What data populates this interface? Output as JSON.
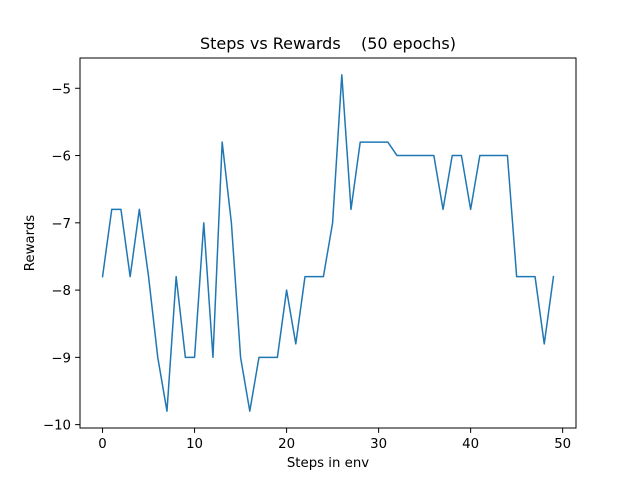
{
  "chart_data": {
    "type": "line",
    "title": "Steps vs Rewards    (50 epochs)",
    "xlabel": "Steps in env",
    "ylabel": "Rewards",
    "xlim": [
      -2.45,
      51.45
    ],
    "ylim": [
      -10.05,
      -4.55
    ],
    "x_ticks": [
      0,
      10,
      20,
      30,
      40,
      50
    ],
    "y_ticks": [
      -10,
      -9,
      -8,
      -7,
      -6,
      -5
    ],
    "x_tick_labels": [
      "0",
      "10",
      "20",
      "30",
      "40",
      "50"
    ],
    "y_tick_labels": [
      "−10",
      "−9",
      "−8",
      "−7",
      "−6",
      "−5"
    ],
    "grid": false,
    "series": [
      {
        "color": "#1f77b4",
        "x": [
          0,
          1,
          2,
          3,
          4,
          5,
          6,
          7,
          8,
          9,
          10,
          11,
          12,
          13,
          14,
          15,
          16,
          17,
          18,
          19,
          20,
          21,
          22,
          23,
          24,
          25,
          26,
          27,
          28,
          29,
          30,
          31,
          32,
          33,
          34,
          35,
          36,
          37,
          38,
          39,
          40,
          41,
          42,
          43,
          44,
          45,
          46,
          47,
          48,
          49
        ],
        "values": [
          -7.8,
          -6.8,
          -6.8,
          -7.8,
          -6.8,
          -7.8,
          -9.0,
          -9.8,
          -7.8,
          -9.0,
          -9.0,
          -7.0,
          -9.0,
          -5.8,
          -7.0,
          -9.0,
          -9.8,
          -9.0,
          -9.0,
          -9.0,
          -8.0,
          -8.8,
          -7.8,
          -7.8,
          -7.8,
          -7.0,
          -4.8,
          -6.8,
          -5.8,
          -5.8,
          -5.8,
          -5.8,
          -6.0,
          -6.0,
          -6.0,
          -6.0,
          -6.0,
          -6.8,
          -6.0,
          -6.0,
          -6.8,
          -6.0,
          -6.0,
          -6.0,
          -6.0,
          -7.8,
          -7.8,
          -7.8,
          -8.8,
          -7.8
        ]
      }
    ]
  }
}
